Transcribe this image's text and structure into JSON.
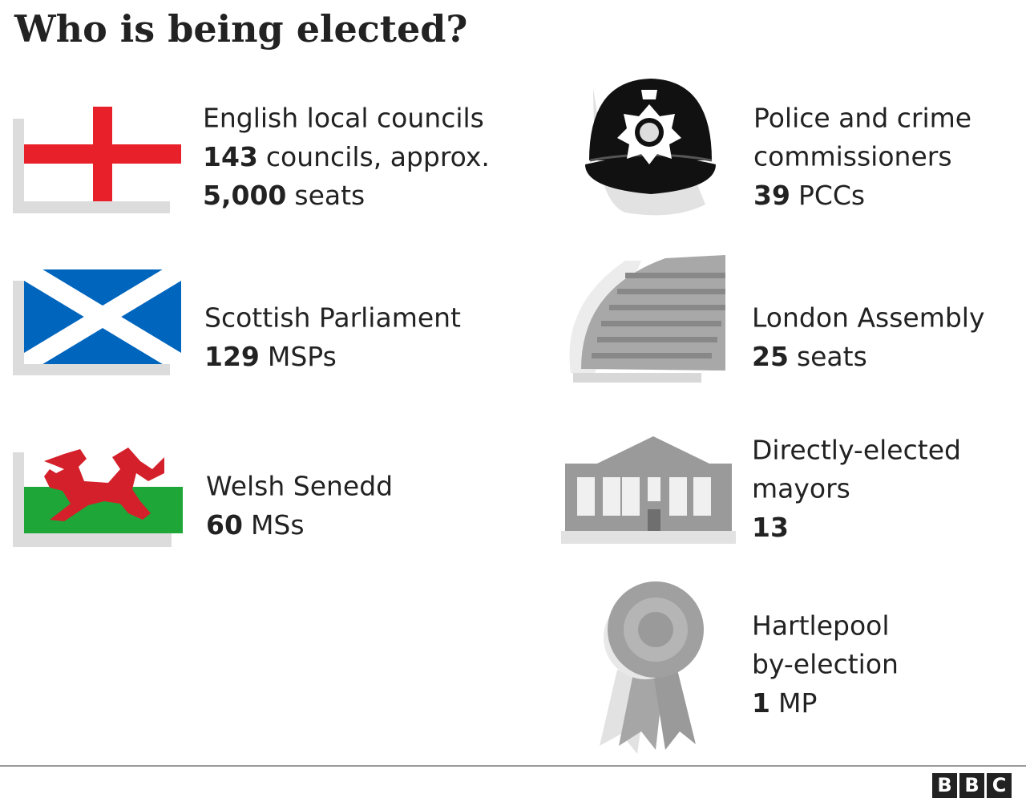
{
  "header": {
    "title": "Who is being elected?"
  },
  "items": [
    {
      "label": [
        "English local councils"
      ],
      "lines": [
        {
          "bold": "143",
          "text": "councils, approx."
        },
        {
          "bold": "5,000",
          "text": "seats"
        }
      ]
    },
    {
      "label": [
        "Scottish Parliament"
      ],
      "lines": [
        {
          "bold": "129",
          "text": "MSPs"
        }
      ]
    },
    {
      "label": [
        "Welsh Senedd"
      ],
      "lines": [
        {
          "bold": "60",
          "text": "MSs"
        }
      ]
    },
    {
      "label": [
        "Police and crime",
        "commissioners"
      ],
      "lines": [
        {
          "bold": "39",
          "text": "PCCs"
        }
      ]
    },
    {
      "label": [
        "London Assembly"
      ],
      "lines": [
        {
          "bold": "25",
          "text": "seats"
        }
      ]
    },
    {
      "label": [
        "Directly-elected",
        "mayors"
      ],
      "lines": [
        {
          "bold": "13"
        }
      ]
    },
    {
      "label": [
        "Hartlepool",
        "by-election"
      ],
      "lines": [
        {
          "bold": "1",
          "text": "MP"
        }
      ]
    }
  ],
  "footer": {
    "logo": [
      "B",
      "B",
      "C"
    ]
  }
}
